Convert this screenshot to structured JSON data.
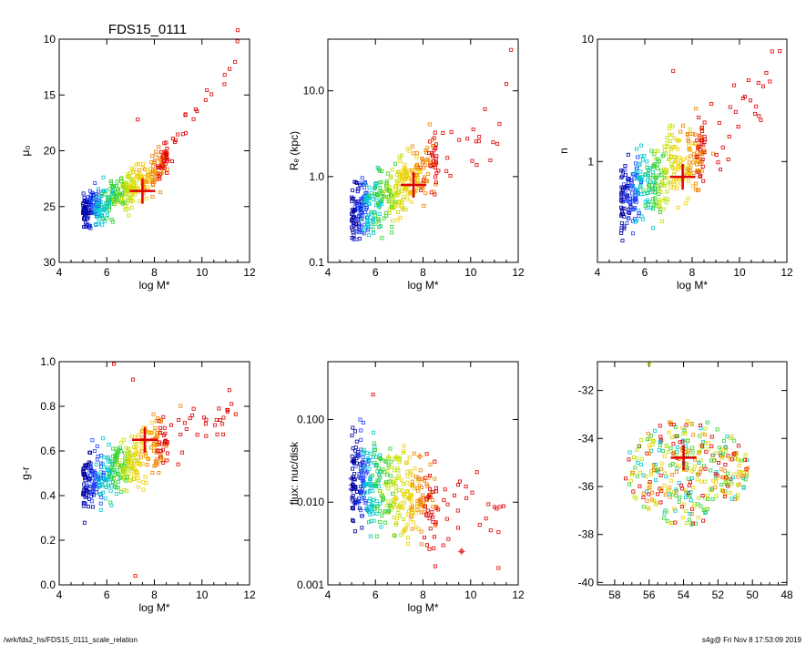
{
  "title": "FDS15_0111",
  "footer": {
    "left": "/wrk/fds2_hs/FDS15_0111_scale_relation",
    "right": "s4g@  Fri Nov  8 17:53:09 2019"
  },
  "colors": {
    "marker": "#e00000",
    "stops": [
      "#0000a0",
      "#2040ff",
      "#00c8d0",
      "#30d030",
      "#c0e000",
      "#f0d000",
      "#f08000",
      "#e00000"
    ]
  },
  "chart_data": [
    {
      "type": "scatter",
      "panel": "mu0",
      "xlabel": "log M*",
      "ylabel": "μ₀",
      "xlim": [
        4,
        12
      ],
      "ylim": [
        30,
        10
      ],
      "scale": "linear",
      "xticks": [
        "4",
        "6",
        "8",
        "10",
        "12"
      ],
      "yticks": [
        "10",
        "15",
        "20",
        "25",
        "30"
      ],
      "marker": {
        "x": 7.5,
        "y": 23.6
      },
      "trend": {
        "x": [
          5.0,
          6.5,
          8.0,
          10.0,
          11.5
        ],
        "y": [
          25.5,
          24.2,
          22.0,
          16.5,
          12.0
        ],
        "spread": 1.2
      },
      "extras": [
        {
          "x": 11.5,
          "y": 9.2
        },
        {
          "x": 9.3,
          "y": 16.8
        },
        {
          "x": 7.3,
          "y": 17.2
        }
      ]
    },
    {
      "type": "scatter",
      "panel": "Re",
      "xlabel": "log M*",
      "ylabel": "Rₑ (kpc)",
      "xlim": [
        4,
        12
      ],
      "ylim": [
        0.1,
        40
      ],
      "scale": "log",
      "xticks": [
        "4",
        "6",
        "8",
        "10",
        "12"
      ],
      "yticks": [
        "0.1",
        "1.0",
        "10.0"
      ],
      "marker": {
        "x": 7.6,
        "y": 0.8
      },
      "trend": {
        "x": [
          5.0,
          6.5,
          8.0,
          10.0,
          11.5
        ],
        "y": [
          0.35,
          0.55,
          1.1,
          2.5,
          4.0
        ],
        "spread": 0.35
      },
      "extras": [
        {
          "x": 11.7,
          "y": 30
        },
        {
          "x": 11.5,
          "y": 12
        }
      ]
    },
    {
      "type": "scatter",
      "panel": "n",
      "xlabel": "log M*",
      "ylabel": "n",
      "xlim": [
        4,
        12
      ],
      "ylim": [
        0.15,
        10
      ],
      "scale": "log",
      "xticks": [
        "4",
        "6",
        "8",
        "10",
        "12"
      ],
      "yticks": [
        "1",
        "10"
      ],
      "marker": {
        "x": 7.6,
        "y": 0.75
      },
      "trend": {
        "x": [
          5.0,
          6.5,
          8.0,
          10.0,
          11.5
        ],
        "y": [
          0.5,
          0.7,
          1.1,
          2.0,
          4.5
        ],
        "spread": 0.3
      },
      "extras": [
        {
          "x": 7.2,
          "y": 5.5
        },
        {
          "x": 11.7,
          "y": 8.0
        }
      ]
    },
    {
      "type": "scatter",
      "panel": "gr",
      "xlabel": "log M*",
      "ylabel": "g-r",
      "xlim": [
        4,
        12
      ],
      "ylim": [
        0.0,
        1.0
      ],
      "scale": "linear",
      "xticks": [
        "4",
        "6",
        "8",
        "10",
        "12"
      ],
      "yticks": [
        "0.0",
        "0.2",
        "0.4",
        "0.6",
        "0.8",
        "1.0"
      ],
      "marker": {
        "x": 7.6,
        "y": 0.65
      },
      "trend": {
        "x": [
          5.0,
          6.5,
          8.0,
          10.0,
          11.5
        ],
        "y": [
          0.45,
          0.52,
          0.62,
          0.72,
          0.78
        ],
        "spread": 0.12
      },
      "extras": [
        {
          "x": 6.3,
          "y": 0.99
        },
        {
          "x": 7.2,
          "y": 0.04
        },
        {
          "x": 7.1,
          "y": 0.92
        }
      ]
    },
    {
      "type": "scatter",
      "panel": "flux",
      "xlabel": "log M*",
      "ylabel": "flux: nuc/disk",
      "xlim": [
        4,
        12
      ],
      "ylim": [
        0.001,
        0.5
      ],
      "scale": "log",
      "xticks": [
        "4",
        "6",
        "8",
        "10",
        "12"
      ],
      "yticks": [
        "0.001",
        "0.010",
        "0.100"
      ],
      "marker": null,
      "trend": {
        "x": [
          5.0,
          6.5,
          8.0,
          10.0,
          11.5
        ],
        "y": [
          0.02,
          0.015,
          0.01,
          0.008,
          0.006
        ],
        "spread": 0.55
      },
      "extras": [
        {
          "x": 5.9,
          "y": 0.2
        }
      ]
    },
    {
      "type": "scatter",
      "panel": "coords",
      "xlabel": "",
      "ylabel": "",
      "xlim": [
        59,
        48
      ],
      "ylim": [
        -40.1,
        -30.8
      ],
      "scale": "linear",
      "xticks": [
        "58",
        "56",
        "54",
        "52",
        "50",
        "48"
      ],
      "yticks": [
        "-40",
        "-38",
        "-36",
        "-34",
        "-32"
      ],
      "marker": {
        "x": 54.0,
        "y": -34.8
      },
      "cloud": {
        "cx": 53.8,
        "cy": -35.4,
        "rx": 3.6,
        "ry": 2.2
      },
      "extras": [
        {
          "x": 56.0,
          "y": -30.9
        }
      ]
    }
  ]
}
